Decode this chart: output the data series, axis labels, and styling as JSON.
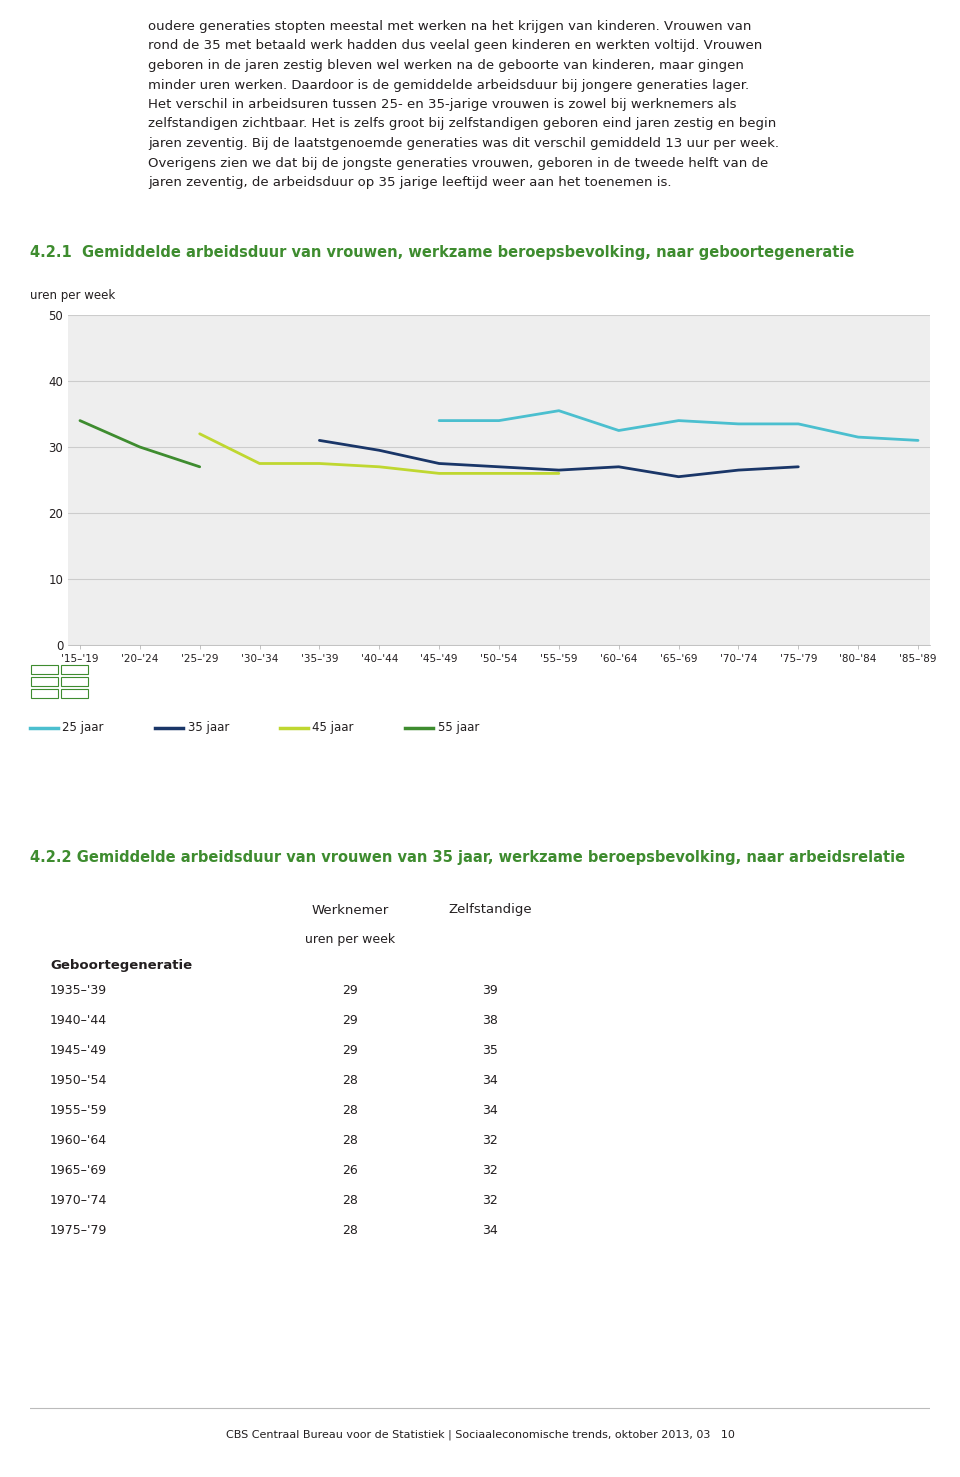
{
  "paragraph_text": "oudere generaties stopten meestal met werken na het krijgen van kinderen. Vrouwen van\nrond de 35 met betaald werk hadden dus veelal geen kinderen en werkten voltijd. Vrouwen\ngeboren in de jaren zestig bleven wel werken na de geboorte van kinderen, maar gingen\nminder uren werken. Daardoor is de gemiddelde arbeidsduur bij jongere generaties lager.\nHet verschil in arbeidsuren tussen 25- en 35-jarige vrouwen is zowel bij werknemers als\nzelfstandigen zichtbaar. Het is zelfs groot bij zelfstandigen geboren eind jaren zestig en begin\njaren zeventig. Bij de laatstgenoemde generaties was dit verschil gemiddeld 13 uur per week.\nOverigens zien we dat bij de jongste generaties vrouwen, geboren in de tweede helft van de\njaren zeventig, de arbeidsduur op 35 jarige leeftijd weer aan het toenemen is.",
  "chart1_title": "4.2.1  Gemiddelde arbeidsduur van vrouwen, werkzame beroepsbevolking, naar geboortegeneratie",
  "chart1_ylabel": "uren per week",
  "chart1_ylim": [
    0,
    50
  ],
  "chart1_yticks": [
    0,
    10,
    20,
    30,
    40,
    50
  ],
  "chart1_xticks": [
    "'15–'19",
    "'20–'24",
    "'25–'29",
    "'30–'34",
    "'35–'39",
    "'40–'44",
    "'45–'49",
    "'50–'54",
    "'55–'59",
    "'60–'64",
    "'65–'69",
    "'70–'74",
    "'75–'79",
    "'80–'84",
    "'85–'89"
  ],
  "line_25jaar": {
    "values": [
      null,
      null,
      null,
      null,
      null,
      null,
      34.0,
      34.0,
      35.5,
      32.5,
      34.0,
      33.5,
      33.5,
      31.5,
      31.0
    ],
    "color": "#4BBFCF",
    "label": "25 jaar"
  },
  "line_35jaar": {
    "values": [
      null,
      null,
      null,
      null,
      31.0,
      29.5,
      27.5,
      27.0,
      26.5,
      27.0,
      25.5,
      26.5,
      27.0,
      null,
      null
    ],
    "color": "#1A3668",
    "label": "35 jaar"
  },
  "line_45jaar": {
    "values": [
      null,
      null,
      32.0,
      27.5,
      27.5,
      27.0,
      26.0,
      26.0,
      26.0,
      null,
      null,
      null,
      null,
      null,
      null
    ],
    "color": "#BFD730",
    "label": "45 jaar"
  },
  "line_55jaar": {
    "values": [
      34.0,
      30.0,
      27.0,
      null,
      null,
      null,
      null,
      null,
      null,
      null,
      null,
      null,
      null,
      null,
      null
    ],
    "color": "#3E8C2F",
    "label": "55 jaar"
  },
  "chart2_title": "4.2.2 Gemiddelde arbeidsduur van vrouwen van 35 jaar, werkzame beroepsbevolking, naar arbeidsrelatie",
  "table_col1": "Werknemer",
  "table_col2": "Zelfstandige",
  "table_unit": "uren per week",
  "table_row_label": "Geboortegeneratie",
  "table_data": [
    [
      "1935–'39",
      29,
      39
    ],
    [
      "1940–'44",
      29,
      38
    ],
    [
      "1945–'49",
      29,
      35
    ],
    [
      "1950–'54",
      28,
      34
    ],
    [
      "1955–'59",
      28,
      34
    ],
    [
      "1960–'64",
      28,
      32
    ],
    [
      "1965–'69",
      26,
      32
    ],
    [
      "1970–'74",
      28,
      32
    ],
    [
      "1975–'79",
      28,
      34
    ]
  ],
  "footer_text": "CBS Centraal Bureau voor de Statistiek | Sociaaleconomische trends, oktober 2013, 03   10",
  "bg_color": "#FFFFFF",
  "chart_bg_color": "#EEEEEE",
  "title_color": "#3E8C2F",
  "text_color": "#231F20",
  "grid_color": "#CCCCCC",
  "table_left_bg": "#E0E0E0",
  "table_border_color": "#AAAAAA"
}
